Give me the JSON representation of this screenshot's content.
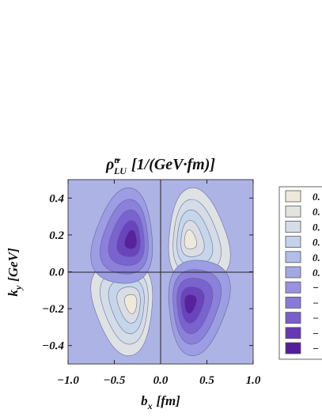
{
  "chart_data": {
    "type": "contour",
    "title_main": "ρ̃",
    "title_sup": "u",
    "title_sub": "LU",
    "title_units": "[1/(GeV·fm)]",
    "xlabel_main": "b",
    "xlabel_sub": "x",
    "xlabel_units": "[fm]",
    "ylabel_main": "k",
    "ylabel_sub": "y",
    "ylabel_units": "[GeV]",
    "xlim": [
      -1.0,
      1.0
    ],
    "ylim": [
      -0.5,
      0.5
    ],
    "xticks": [
      {
        "value": -1.0,
        "label": "−1.0"
      },
      {
        "value": -0.5,
        "label": "−0.5"
      },
      {
        "value": 0.0,
        "label": "0.0"
      },
      {
        "value": 0.5,
        "label": "0.5"
      },
      {
        "value": 1.0,
        "label": "1.0"
      }
    ],
    "yticks": [
      {
        "value": 0.4,
        "label": "0.4"
      },
      {
        "value": 0.2,
        "label": "0.2"
      },
      {
        "value": 0.0,
        "label": "0.0"
      },
      {
        "value": -0.2,
        "label": "−0.2"
      },
      {
        "value": -0.4,
        "label": "−0.4"
      }
    ],
    "extrema": [
      {
        "x": 0.3,
        "y": 0.17,
        "sign": "positive"
      },
      {
        "x": -0.3,
        "y": -0.17,
        "sign": "positive"
      },
      {
        "x": -0.3,
        "y": 0.17,
        "sign": "negative"
      },
      {
        "x": 0.3,
        "y": -0.17,
        "sign": "negative"
      }
    ],
    "levels": [
      {
        "color": "#efe9db",
        "label": "0."
      },
      {
        "color": "#e3e4e0",
        "label": "0."
      },
      {
        "color": "#d5dde6",
        "label": "0."
      },
      {
        "color": "#c4d3ea",
        "label": "0."
      },
      {
        "color": "#b3bde8",
        "label": "0."
      },
      {
        "color": "#a3a8e3",
        "label": "0."
      },
      {
        "color": "#9a92df",
        "label": "−"
      },
      {
        "color": "#8a7ad8",
        "label": "−"
      },
      {
        "color": "#7a5ecd",
        "label": "−"
      },
      {
        "color": "#6638b6",
        "label": "−"
      },
      {
        "color": "#551d9b",
        "label": "−"
      }
    ],
    "grid": false,
    "legend_position": "right"
  }
}
